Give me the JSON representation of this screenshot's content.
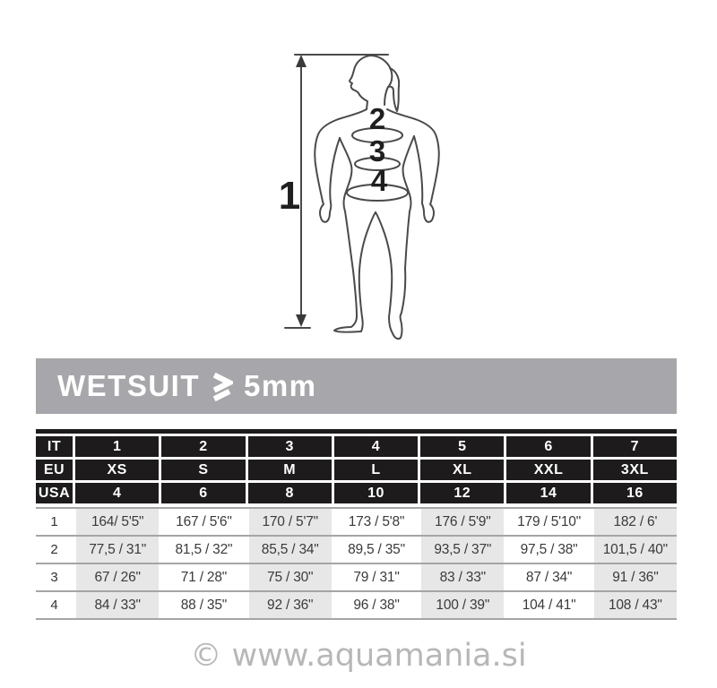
{
  "banner": {
    "title_prefix": "WETSUIT",
    "comparator_symbol": "≥",
    "title_suffix": "5mm",
    "bg_color": "#a7a7ab"
  },
  "figure": {
    "height_label": "1",
    "chest_label": "2",
    "waist_label": "3",
    "hip_label": "4"
  },
  "size_table": {
    "colors": {
      "header_bg": "#1d1b1c",
      "cell_gray": "#e7e7e8",
      "separator": "#a5a5a6"
    },
    "header_rows": [
      {
        "label": "IT",
        "cells": [
          "1",
          "2",
          "3",
          "4",
          "5",
          "6",
          "7"
        ]
      },
      {
        "label": "EU",
        "cells": [
          "XS",
          "S",
          "M",
          "L",
          "XL",
          "XXL",
          "3XL"
        ]
      },
      {
        "label": "USA",
        "cells": [
          "4",
          "6",
          "8",
          "10",
          "12",
          "14",
          "16"
        ]
      }
    ],
    "data_rows": [
      {
        "label": "1",
        "cells": [
          "164/ 5'5\"",
          "167 / 5'6\"",
          "170 / 5'7\"",
          "173 / 5'8\"",
          "176 / 5'9\"",
          "179 / 5'10\"",
          "182 / 6'"
        ]
      },
      {
        "label": "2",
        "cells": [
          "77,5 / 31\"",
          "81,5 / 32\"",
          "85,5 / 34\"",
          "89,5 / 35\"",
          "93,5 / 37\"",
          "97,5 / 38\"",
          "101,5 / 40\""
        ]
      },
      {
        "label": "3",
        "cells": [
          "67 / 26\"",
          "71 / 28\"",
          "75 / 30\"",
          "79 / 31\"",
          "83 / 33\"",
          "87 / 34\"",
          "91 / 36\""
        ]
      },
      {
        "label": "4",
        "cells": [
          "84 / 33\"",
          "88 / 35\"",
          "92 / 36\"",
          "96 / 38\"",
          "100 / 39\"",
          "104 / 41\"",
          "108 / 43\""
        ]
      }
    ]
  },
  "watermark": {
    "text": "© www.aquamania.si"
  }
}
